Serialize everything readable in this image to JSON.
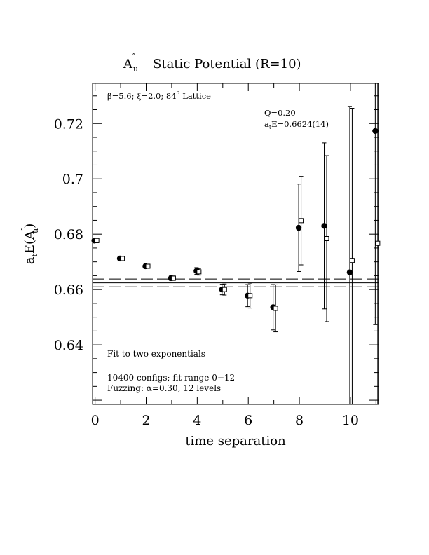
{
  "chart_data": {
    "type": "scatter",
    "title": "Static Potential (R=10)",
    "title_prefix": "A",
    "title_prefix_sub": "u",
    "title_prefix_sup": "″",
    "xlabel": "time separation",
    "ylabel_prefix": "a",
    "ylabel_sub": "t",
    "ylabel_main": "E(A",
    "ylabel_main_sub": "u",
    "ylabel_main_sup": "″",
    "ylabel_close": ")",
    "xlim": [
      -0.1,
      11.1
    ],
    "ylim": [
      0.6185,
      0.7345
    ],
    "x_ticks": [
      0,
      2,
      4,
      6,
      8,
      10
    ],
    "x_tick_labels": [
      "0",
      "2",
      "4",
      "6",
      "8",
      "10"
    ],
    "y_ticks": [
      0.64,
      0.66,
      0.68,
      0.7,
      0.72
    ],
    "y_tick_labels": [
      "0.64",
      "0.66",
      "0.68",
      "0.7",
      "0.72"
    ],
    "annotations": {
      "lattice": "β=5.6; ξ=2.0; 8⁴³ Lattice",
      "lattice_text": "β=5.6; ξ=2.0; 84",
      "lattice_sup": "3",
      "lattice_tail": " Lattice",
      "q": "Q=0.20",
      "fit_energy": "a",
      "fit_energy_sub": "t",
      "fit_energy_value": "E=0.6624(14)",
      "fit_method": "Fit to two exponentials",
      "configs": "10400 configs; fit range 0−12",
      "fuzzing": "Fuzzing: α=0.30, 12 levels"
    },
    "fit": {
      "center": 0.6624,
      "error": 0.0014
    },
    "series": [
      {
        "marker": "filled-circle",
        "points": [
          {
            "x": 0,
            "y": 0.6777,
            "err": 0.0008
          },
          {
            "x": 1,
            "y": 0.6712,
            "err": 0.0007
          },
          {
            "x": 2,
            "y": 0.6684,
            "err": 0.0007
          },
          {
            "x": 3,
            "y": 0.6641,
            "err": 0.0008
          },
          {
            "x": 4,
            "y": 0.6667,
            "err": 0.0012
          },
          {
            "x": 5,
            "y": 0.66,
            "err": 0.0019
          },
          {
            "x": 6,
            "y": 0.6578,
            "err": 0.004
          },
          {
            "x": 7,
            "y": 0.6536,
            "err": 0.0082
          },
          {
            "x": 8,
            "y": 0.6823,
            "err": 0.0158
          },
          {
            "x": 9,
            "y": 0.683,
            "err": 0.03
          },
          {
            "x": 10,
            "y": 0.6662,
            "err": 0.06
          },
          {
            "x": 11,
            "y": 0.7173,
            "err": 0.07
          }
        ]
      },
      {
        "marker": "open-square",
        "points": [
          {
            "x": 0,
            "y": 0.6777,
            "err": 0.0008
          },
          {
            "x": 1,
            "y": 0.6712,
            "err": 0.0007
          },
          {
            "x": 2,
            "y": 0.6684,
            "err": 0.0007
          },
          {
            "x": 3,
            "y": 0.6641,
            "err": 0.0008
          },
          {
            "x": 4,
            "y": 0.6664,
            "err": 0.0012
          },
          {
            "x": 5,
            "y": 0.66,
            "err": 0.002
          },
          {
            "x": 6,
            "y": 0.6578,
            "err": 0.0045
          },
          {
            "x": 7,
            "y": 0.6532,
            "err": 0.0085
          },
          {
            "x": 8,
            "y": 0.6849,
            "err": 0.016
          },
          {
            "x": 9,
            "y": 0.6784,
            "err": 0.03
          },
          {
            "x": 10,
            "y": 0.6705,
            "err": 0.055
          },
          {
            "x": 11,
            "y": 0.6767,
            "err": 0.08
          }
        ]
      }
    ]
  }
}
